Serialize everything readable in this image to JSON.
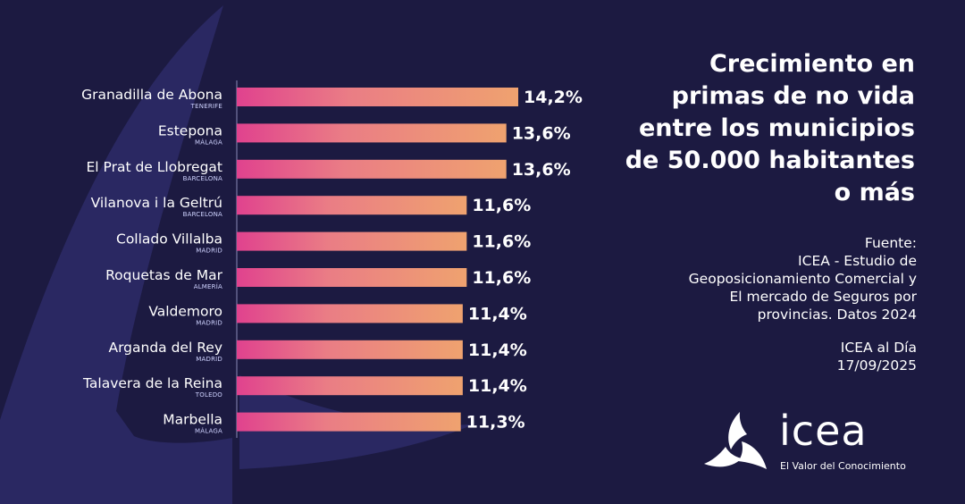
{
  "title": "Crecimiento en primas de no vida entre los municipios de 50.000 habitantes o más",
  "source": {
    "label": "Fuente:",
    "lines": [
      "ICEA - Estudio de",
      "Geoposicionamiento Comercial y",
      "El mercado de Seguros por",
      "provincias. Datos 2024"
    ]
  },
  "publication": {
    "name": "ICEA al Día",
    "date": "17/09/2025"
  },
  "logo": {
    "word": "icea",
    "tagline": "El Valor del Conocimiento"
  },
  "colors": {
    "background": "#1c1a41",
    "shape": "#2a2862",
    "bar_start": "#e0428e",
    "bar_end": "#efa26f"
  },
  "chart_data": {
    "type": "bar",
    "orientation": "horizontal",
    "title": "Crecimiento en primas de no vida entre los municipios de 50.000 habitantes o más",
    "categories": [
      "Granadilla de Abona",
      "Estepona",
      "El Prat de Llobregat",
      "Vilanova i la Geltrú",
      "Collado Villalba",
      "Roquetas de Mar",
      "Valdemoro",
      "Arganda del Rey",
      "Talavera de la Reina",
      "Marbella"
    ],
    "provinces": [
      "TENERIFE",
      "MÁLAGA",
      "BARCELONA",
      "BARCELONA",
      "MADRID",
      "ALMERÍA",
      "MADRID",
      "MADRID",
      "TOLEDO",
      "MÁLAGA"
    ],
    "values": [
      14.2,
      13.6,
      13.6,
      11.6,
      11.6,
      11.6,
      11.4,
      11.4,
      11.4,
      11.3
    ],
    "value_labels": [
      "14,2%",
      "13,6%",
      "13,6%",
      "11,6%",
      "11,6%",
      "11,6%",
      "11,4%",
      "11,4%",
      "11,4%",
      "11,3%"
    ],
    "unit": "%",
    "xlim": [
      0,
      14.2
    ],
    "xlabel": "",
    "ylabel": ""
  }
}
